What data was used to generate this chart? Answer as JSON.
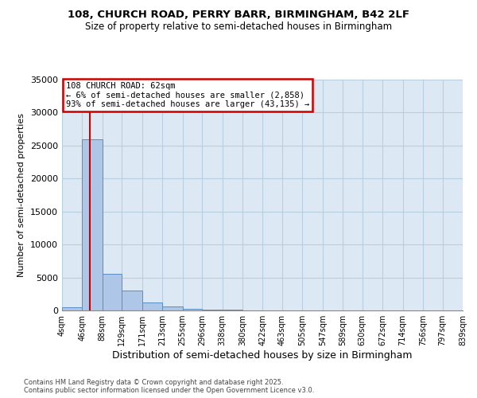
{
  "title1": "108, CHURCH ROAD, PERRY BARR, BIRMINGHAM, B42 2LF",
  "title2": "Size of property relative to semi-detached houses in Birmingham",
  "xlabel": "Distribution of semi-detached houses by size in Birmingham",
  "ylabel": "Number of semi-detached properties",
  "footnote": "Contains HM Land Registry data © Crown copyright and database right 2025.\nContains public sector information licensed under the Open Government Licence v3.0.",
  "property_label": "108 CHURCH ROAD: 62sqm",
  "smaller_pct": "6% of semi-detached houses are smaller (2,858)",
  "larger_pct": "93% of semi-detached houses are larger (43,135)",
  "property_size": 62,
  "bin_edges": [
    4,
    46,
    88,
    129,
    171,
    213,
    255,
    296,
    338,
    380,
    422,
    463,
    505,
    547,
    589,
    630,
    672,
    714,
    756,
    797,
    839
  ],
  "bin_counts": [
    500,
    26000,
    5500,
    3000,
    1200,
    600,
    300,
    150,
    80,
    50,
    30,
    20,
    15,
    10,
    8,
    6,
    4,
    3,
    2,
    1
  ],
  "bar_color": "#aec6e8",
  "bar_edgecolor": "#5a8fc4",
  "redline_color": "#cc0000",
  "annotation_box_edgecolor": "#cc0000",
  "background_color": "#ffffff",
  "axes_facecolor": "#dce9f5",
  "grid_color": "#b8cfe0",
  "ylim": [
    0,
    35000
  ],
  "yticks": [
    0,
    5000,
    10000,
    15000,
    20000,
    25000,
    30000,
    35000
  ]
}
